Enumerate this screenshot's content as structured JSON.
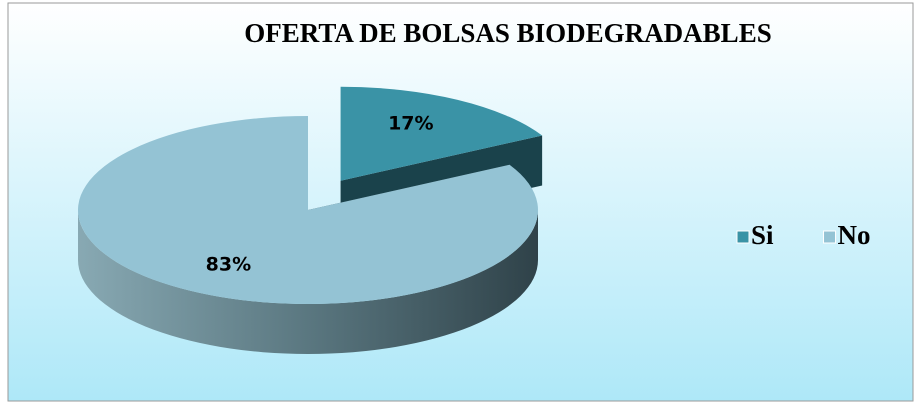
{
  "chart_data": {
    "type": "pie",
    "title": "OFERTA DE BOLSAS BIODEGRADABLES",
    "categories": [
      "Si",
      "No"
    ],
    "values": [
      17,
      83
    ],
    "value_labels": [
      "17%",
      "83%"
    ],
    "colors": [
      "#3a93a6",
      "#94c3d4"
    ],
    "explode": [
      true,
      false
    ],
    "legend": "right"
  }
}
